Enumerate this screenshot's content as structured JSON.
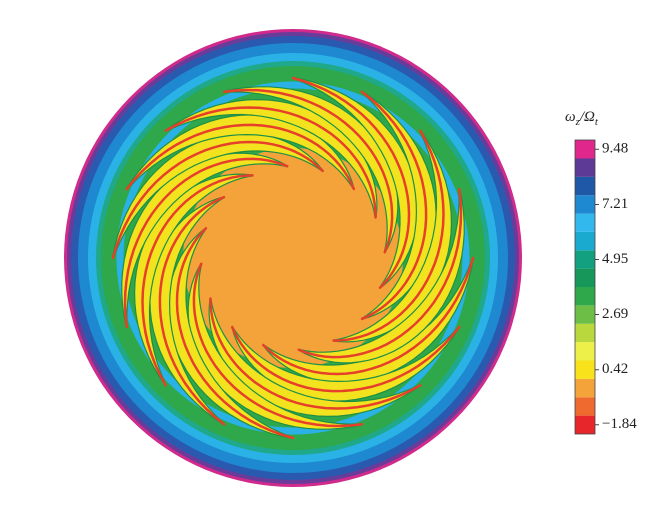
{
  "chart_data": {
    "type": "contour",
    "colorbar_label": [
      "ω",
      "z",
      "/Ω",
      "t"
    ],
    "clim": [
      -2.22,
      9.86
    ],
    "levels": [
      -1.84,
      -1.09,
      -0.33,
      0.42,
      1.18,
      1.93,
      2.69,
      3.44,
      4.2,
      4.95,
      5.71,
      6.46,
      7.21,
      7.97,
      8.72,
      9.48
    ],
    "colors": [
      "#e6262a",
      "#ef6a2f",
      "#f4a23a",
      "#f7e21c",
      "#eef04a",
      "#b8d83e",
      "#6cbe46",
      "#2fa84c",
      "#17985a",
      "#12a080",
      "#1aaad0",
      "#32b8ec",
      "#1e88d0",
      "#1e58a6",
      "#5c3a96",
      "#e0288c"
    ],
    "ticks": [
      9.48,
      7.21,
      4.95,
      2.69,
      0.42,
      {
        "value": -1.84,
        "label": "−1.84"
      }
    ]
  }
}
